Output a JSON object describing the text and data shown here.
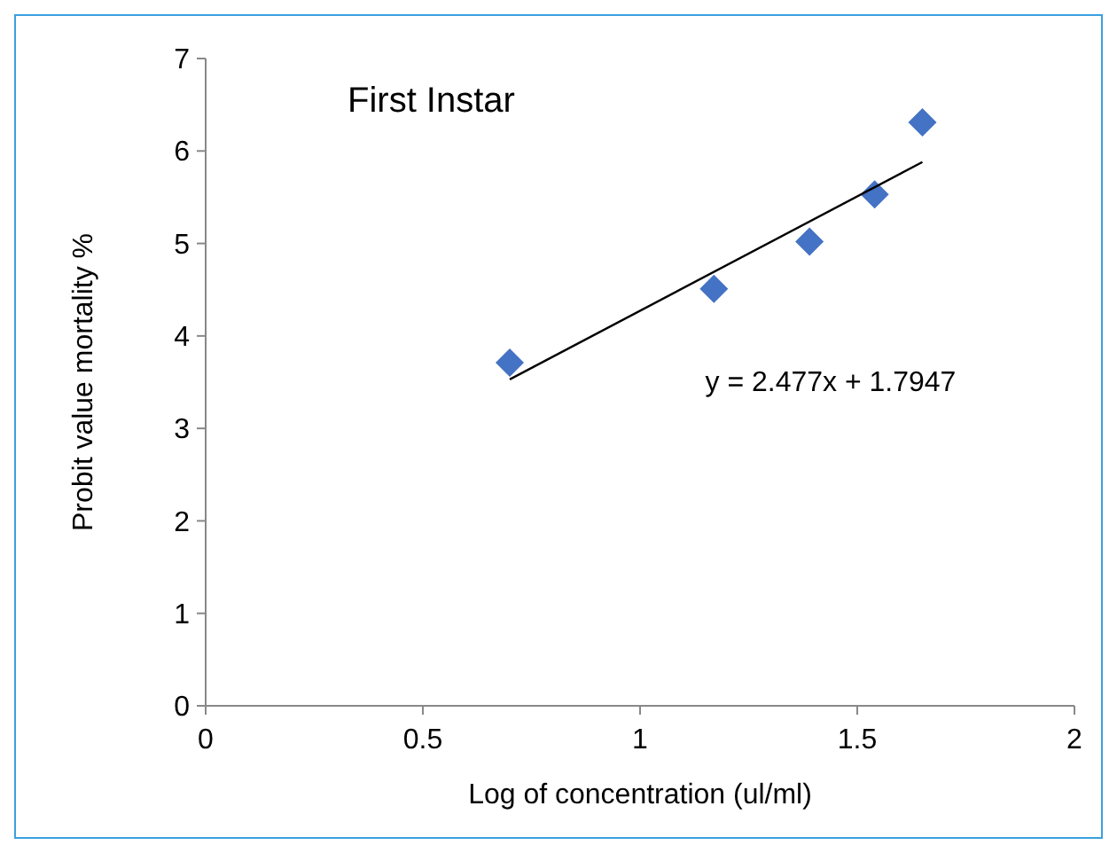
{
  "chart_data": {
    "type": "scatter",
    "title": "First Instar",
    "xlabel": "Log of concentration (ul/ml)",
    "ylabel": "Probit value mortality %",
    "xlim": [
      0,
      2
    ],
    "xticks": [
      0,
      0.5,
      1,
      1.5,
      2
    ],
    "ylim": [
      0,
      7
    ],
    "yticks": [
      0,
      1,
      2,
      3,
      4,
      5,
      6,
      7
    ],
    "grid": false,
    "marker": "diamond",
    "series": [
      {
        "color": "#4472c4",
        "x": [
          0.7,
          1.17,
          1.39,
          1.54,
          1.65
        ],
        "values": [
          3.71,
          4.51,
          5.02,
          5.53,
          6.31
        ]
      },
      {
        "type": "line",
        "color": "#000000",
        "marker": "none",
        "x": [
          0.7,
          1.65
        ],
        "values": [
          3.53,
          5.88
        ]
      }
    ],
    "annotations": [
      "y = 2.477x + 1.7947"
    ]
  }
}
